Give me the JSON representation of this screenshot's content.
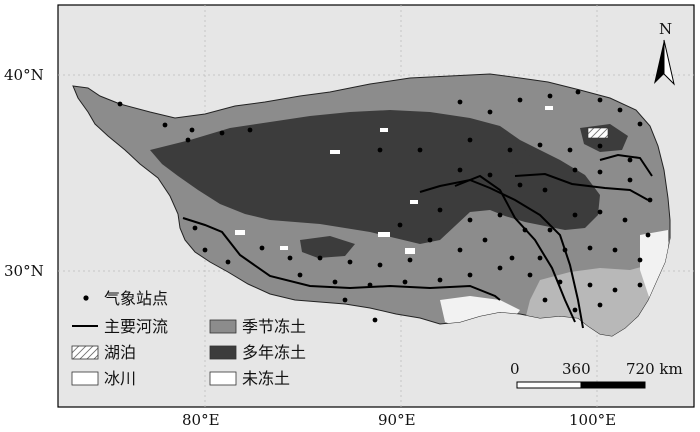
{
  "axes": {
    "lat_labels": [
      "40°N",
      "30°N"
    ],
    "lon_labels": [
      "80°E",
      "90°E",
      "100°E"
    ]
  },
  "north_arrow": {
    "label": "N",
    "icon": "north-arrow-icon"
  },
  "legend": {
    "items": [
      {
        "key": "stations",
        "label": "气象站点",
        "symbol": "dot"
      },
      {
        "key": "rivers",
        "label": "主要河流",
        "symbol": "line"
      },
      {
        "key": "lakes",
        "label": "湖泊",
        "symbol": "hatch"
      },
      {
        "key": "glaciers",
        "label": "冰川",
        "symbol": "box",
        "color": "#ffffff"
      },
      {
        "key": "seasonal",
        "label": "季节冻土",
        "symbol": "box",
        "color": "#8c8c8c"
      },
      {
        "key": "permafrost",
        "label": "多年冻土",
        "symbol": "box",
        "color": "#3c3c3c"
      },
      {
        "key": "unfrozen",
        "label": "未冻土",
        "symbol": "box",
        "color": "#ffffff"
      }
    ]
  },
  "scale_bar": {
    "labels": [
      "0",
      "360",
      "720 km"
    ]
  },
  "colors": {
    "seasonal_frozen": "#8c8c8c",
    "permafrost": "#3c3c3c",
    "unfrozen": "#ffffff",
    "frame_background": "#e6e6e6",
    "river": "#000000"
  }
}
